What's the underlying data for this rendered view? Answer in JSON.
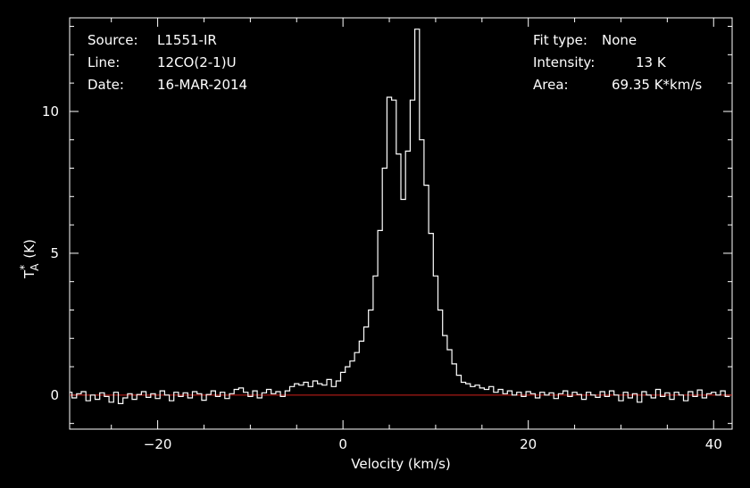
{
  "chart_data": {
    "type": "line",
    "style": "step",
    "xlabel": "Velocity (km/s)",
    "ylabel": "T*A (K)",
    "ylabel_parts": {
      "main": "T",
      "sup": "*",
      "sub": "A",
      "unit": "(K)"
    },
    "xlim": [
      -29.5,
      42
    ],
    "ylim": [
      -1.2,
      13.3
    ],
    "xticks": [
      -20,
      0,
      20,
      40
    ],
    "yticks": [
      0,
      5,
      10
    ],
    "baseline": {
      "y": 0,
      "color": "#d0201a"
    },
    "line_color": "#ffffff",
    "background": "#000000",
    "info_left": [
      {
        "key": "Source:",
        "value": "L1551-IR"
      },
      {
        "key": "Line:",
        "value": "12CO(2-1)U"
      },
      {
        "key": "Date:",
        "value": "16-MAR-2014"
      }
    ],
    "info_right": [
      {
        "key": "Fit type:",
        "value": "None"
      },
      {
        "key": "Intensity:",
        "value": "13 K"
      },
      {
        "key": "Area:",
        "value": "69.35 K*km/s"
      }
    ],
    "series": [
      {
        "x": [
          -29.5,
          -29,
          -28.5,
          -28,
          -27.5,
          -27,
          -26.5,
          -26,
          -25.5,
          -25,
          -24.5,
          -24,
          -23.5,
          -23,
          -22.5,
          -22,
          -21.5,
          -21,
          -20.5,
          -20,
          -19.5,
          -19,
          -18.5,
          -18,
          -17.5,
          -17,
          -16.5,
          -16,
          -15.5,
          -15,
          -14.5,
          -14,
          -13.5,
          -13,
          -12.5,
          -12,
          -11.5,
          -11,
          -10.5,
          -10,
          -9.5,
          -9,
          -8.5,
          -8,
          -7.5,
          -7,
          -6.5,
          -6,
          -5.5,
          -5,
          -4.5,
          -4,
          -3.5,
          -3,
          -2.5,
          -2,
          -1.5,
          -1,
          -0.5,
          0,
          0.5,
          1,
          1.5,
          2,
          2.5,
          3,
          3.5,
          4,
          4.5,
          5,
          5.5,
          6,
          6.5,
          7,
          7.5,
          8,
          8.5,
          9,
          9.5,
          10,
          10.5,
          11,
          11.5,
          12,
          12.5,
          13,
          13.5,
          14,
          14.5,
          15,
          15.5,
          16,
          16.5,
          17,
          17.5,
          18,
          18.5,
          19,
          19.5,
          20,
          20.5,
          21,
          21.5,
          22,
          22.5,
          23,
          23.5,
          24,
          24.5,
          25,
          25.5,
          26,
          26.5,
          27,
          27.5,
          28,
          28.5,
          29,
          29.5,
          30,
          30.5,
          31,
          31.5,
          32,
          32.5,
          33,
          33.5,
          34,
          34.5,
          35,
          35.5,
          36,
          36.5,
          37,
          37.5,
          38,
          38.5,
          39,
          39.5,
          40,
          40.5,
          41,
          41.5
        ],
        "y": [
          0.1,
          -0.1,
          0.05,
          0.12,
          -0.2,
          0.0,
          -0.15,
          0.08,
          -0.05,
          -0.25,
          0.1,
          -0.3,
          -0.1,
          0.05,
          -0.15,
          0.02,
          0.12,
          -0.08,
          0.05,
          -0.12,
          0.15,
          0.0,
          -0.2,
          0.1,
          -0.05,
          0.08,
          -0.1,
          0.12,
          0.05,
          -0.18,
          0.02,
          0.15,
          -0.05,
          0.1,
          -0.12,
          0.05,
          0.2,
          0.25,
          0.1,
          -0.05,
          0.15,
          -0.1,
          0.08,
          0.2,
          0.05,
          0.12,
          -0.05,
          0.15,
          0.3,
          0.4,
          0.35,
          0.45,
          0.3,
          0.5,
          0.4,
          0.35,
          0.55,
          0.3,
          0.5,
          0.8,
          1.0,
          1.2,
          1.5,
          1.9,
          2.4,
          3.0,
          4.2,
          5.8,
          8.0,
          10.5,
          10.4,
          8.5,
          6.9,
          8.6,
          10.4,
          12.9,
          9.0,
          7.4,
          5.7,
          4.2,
          3.0,
          2.1,
          1.6,
          1.1,
          0.7,
          0.45,
          0.4,
          0.3,
          0.35,
          0.25,
          0.2,
          0.3,
          0.1,
          0.2,
          0.05,
          0.15,
          0.0,
          0.1,
          -0.05,
          0.12,
          0.05,
          -0.1,
          0.1,
          0.0,
          0.08,
          -0.12,
          0.05,
          0.15,
          -0.05,
          0.1,
          0.02,
          -0.15,
          0.1,
          0.0,
          -0.08,
          0.12,
          -0.05,
          0.15,
          0.0,
          -0.2,
          0.1,
          -0.1,
          0.05,
          -0.25,
          0.12,
          0.0,
          -0.1,
          0.2,
          -0.05,
          0.08,
          -0.15,
          0.1,
          0.0,
          -0.2,
          0.12,
          -0.05,
          0.18,
          -0.1,
          0.05,
          0.1,
          0.0,
          0.15,
          -0.05
        ]
      }
    ]
  }
}
